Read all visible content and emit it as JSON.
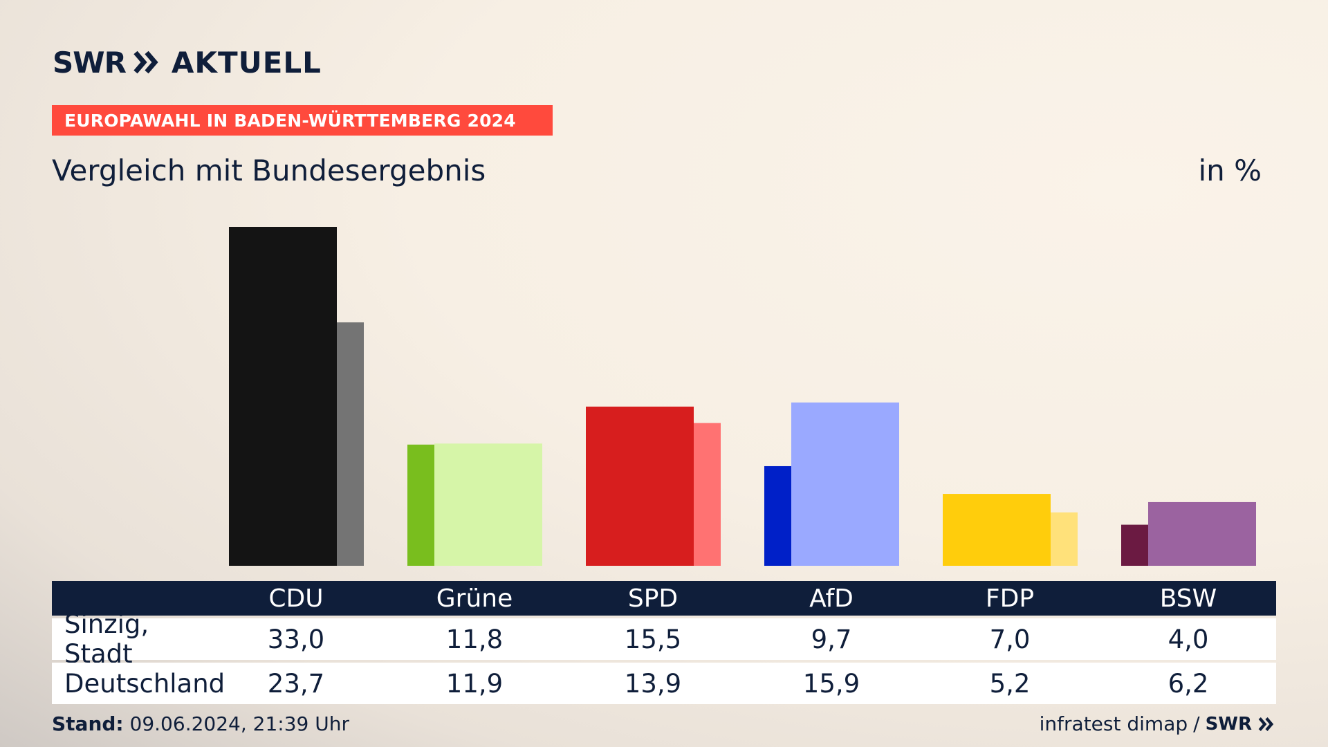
{
  "header": {
    "logo_swr": "SWR",
    "logo_aktuell": "AKTUELL",
    "banner": "EUROPAWAHL IN BADEN-WÜRTTEMBERG 2024",
    "subtitle": "Vergleich mit Bundesergebnis",
    "unit": "in %"
  },
  "chart_data": {
    "type": "bar",
    "categories": [
      "CDU",
      "Grüne",
      "SPD",
      "AfD",
      "FDP",
      "BSW"
    ],
    "series": [
      {
        "name": "Sinzig, Stadt",
        "values": [
          33.0,
          11.8,
          15.5,
          9.7,
          7.0,
          4.0
        ]
      },
      {
        "name": "Deutschland",
        "values": [
          23.7,
          11.9,
          13.9,
          15.9,
          5.2,
          6.2
        ]
      }
    ],
    "display_values": {
      "Sinzig, Stadt": [
        "33,0",
        "11,8",
        "15,5",
        "9,7",
        "7,0",
        "4,0"
      ],
      "Deutschland": [
        "23,7",
        "11,9",
        "13,9",
        "15,9",
        "5,2",
        "6,2"
      ]
    },
    "colors": {
      "primary": [
        "#141414",
        "#79be1e",
        "#d71e1e",
        "#0020c8",
        "#ffcd0c",
        "#6b1a42"
      ],
      "secondary": [
        "#747474",
        "#d6f5a8",
        "#ff7272",
        "#9aa9ff",
        "#ffe17a",
        "#9b63a0"
      ]
    },
    "ylim": [
      0,
      33
    ],
    "grid": false,
    "legend": "none"
  },
  "footer": {
    "stand_label": "Stand:",
    "stand_value": "09.06.2024, 21:39 Uhr",
    "source": "infratest dimap",
    "separator": "/",
    "source_logo": "SWR"
  }
}
